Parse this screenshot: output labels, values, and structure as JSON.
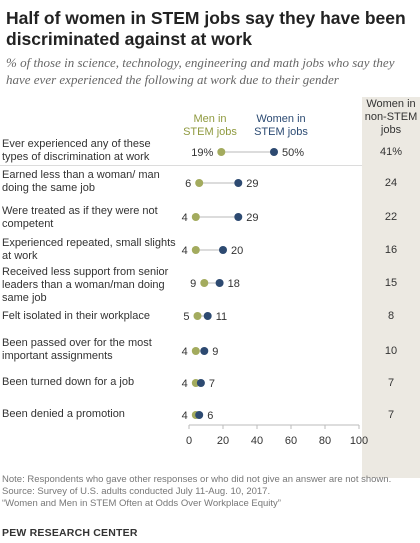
{
  "title": "Half of women in STEM jobs say they have been discriminated against at work",
  "subtitle": "% of those in science, technology, engineering and math jobs who say they have ever experienced the following at work due to their gender",
  "headers": {
    "men": "Men in STEM jobs",
    "women": "Women in STEM jobs",
    "non_stem": "Women in non-STEM jobs"
  },
  "colors": {
    "men": "#a3ab5e",
    "women": "#2d4a71",
    "shade": "#ece9e2"
  },
  "notes": {
    "note": "Note: Respondents who gave other responses or who did not give an answer are not shown.",
    "source": "Source: Survey of U.S. adults conducted July 11-Aug. 10, 2017.",
    "report": "“Women and Men in STEM Often at Odds Over Workplace Equity”"
  },
  "brand": "PEW RESEARCH CENTER",
  "chart_data": {
    "type": "dot-plot",
    "categories": [
      "Ever experienced any of these types of discrimination at work",
      "Earned less than a woman/ man doing the same job",
      "Were treated as if they were not competent",
      "Experienced repeated, small slights at work",
      "Received less support from senior leaders than a woman/man doing same job",
      "Felt isolated in their workplace",
      "Been passed over for the most important assignments",
      "Been turned down for a job",
      "Been denied a promotion"
    ],
    "series": [
      {
        "name": "Men in STEM jobs",
        "values": [
          19,
          6,
          4,
          4,
          9,
          5,
          4,
          4,
          4
        ]
      },
      {
        "name": "Women in STEM jobs",
        "values": [
          50,
          29,
          29,
          20,
          18,
          11,
          9,
          7,
          6
        ]
      }
    ],
    "non_stem": {
      "name": "Women in non-STEM jobs",
      "values": [
        41,
        24,
        22,
        16,
        15,
        8,
        10,
        7,
        7
      ]
    },
    "value_labels": {
      "men": [
        "19%",
        "6",
        "4",
        "4",
        "9",
        "5",
        "4",
        "4",
        "4"
      ],
      "women": [
        "50%",
        "29",
        "29",
        "20",
        "18",
        "11",
        "9",
        "7",
        "6"
      ],
      "non_stem": [
        "41%",
        "24",
        "22",
        "16",
        "15",
        "8",
        "10",
        "7",
        "7"
      ]
    },
    "xlim": [
      0,
      100
    ],
    "xticks": [
      0,
      20,
      40,
      60,
      80,
      100
    ],
    "grid": false
  }
}
